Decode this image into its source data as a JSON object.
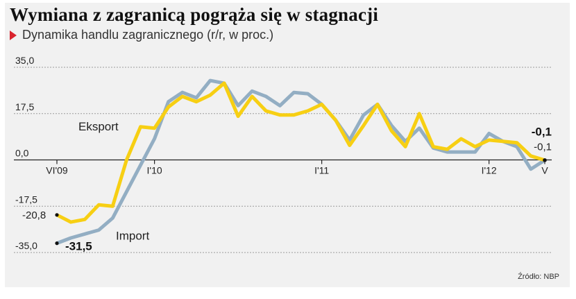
{
  "header": {
    "title": "Wymiana z zagranicą pogrąża się w stagnacji",
    "subtitle": "Dynamika handlu zagranicznego (r/r, w proc.)"
  },
  "source": "Źródło: NBP",
  "colors": {
    "export": "#f7cf13",
    "import": "#93aec3",
    "grid": "#9a9a9a",
    "accent": "#d9232e",
    "background": "#f1f1f1"
  },
  "chart_data": {
    "type": "line",
    "y_ticks": [
      "35,0",
      "17,5",
      "0,0",
      "-17,5",
      "-35,0"
    ],
    "y_tick_values": [
      35,
      17.5,
      0,
      -17.5,
      -35
    ],
    "ylim": [
      -35,
      35
    ],
    "grid": true,
    "x_labels": [
      {
        "index": 0,
        "label": "VI'09"
      },
      {
        "index": 7,
        "label": "I'10"
      },
      {
        "index": 19,
        "label": "I'11"
      },
      {
        "index": 31,
        "label": "I'12"
      },
      {
        "index": 35,
        "label": "V"
      }
    ],
    "series": [
      {
        "name": "Eksport",
        "values": [
          -20.8,
          -23.5,
          -22.5,
          -17,
          -17.5,
          0,
          12.5,
          12,
          20,
          24,
          22,
          24.5,
          29,
          16.5,
          24,
          18.5,
          17,
          17,
          18.5,
          21,
          15,
          5.5,
          13,
          21,
          11,
          5,
          17.5,
          5,
          4,
          8,
          5,
          7.5,
          7,
          6.5,
          1.5,
          -0.1
        ],
        "end_label": "-0,1",
        "end_label_bold": true
      },
      {
        "name": "Import",
        "values": [
          -31.5,
          -29.5,
          -28,
          -26.5,
          -22,
          -12,
          -2,
          8,
          22,
          25.5,
          23.5,
          30,
          29,
          20.5,
          26,
          24,
          20.5,
          25.5,
          25,
          21,
          15,
          7.5,
          17,
          21,
          13,
          7,
          12,
          4.5,
          3,
          3,
          3,
          10,
          7,
          5,
          -3.5,
          -0.1
        ],
        "start_label": "-31,5",
        "end_label": "-0,1"
      }
    ],
    "start_labels": {
      "export": "-20,8"
    }
  }
}
